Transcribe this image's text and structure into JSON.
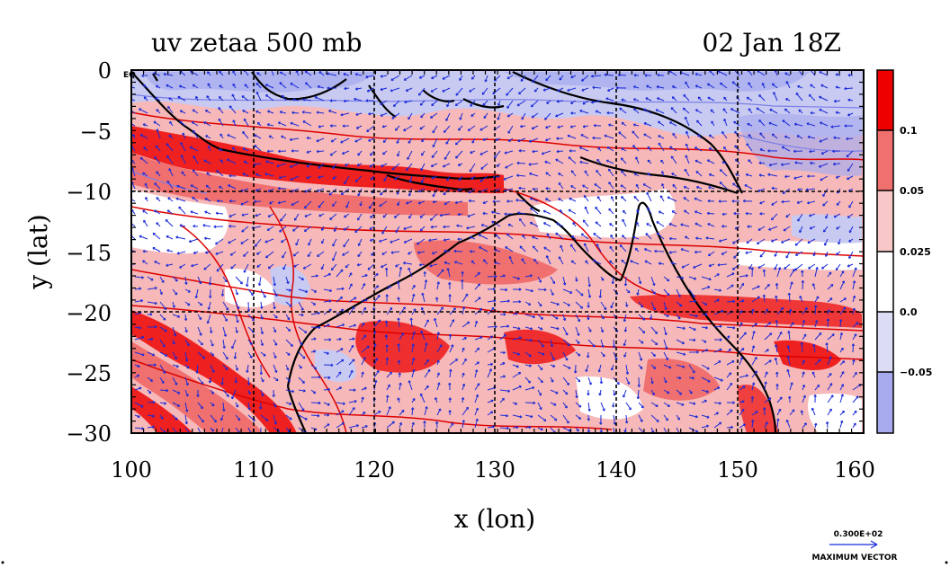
{
  "header": {
    "left_title": "uv zetaa 500 mb",
    "right_title": "02 Jan 18Z"
  },
  "axes": {
    "xlabel": "x (lon)",
    "ylabel": "y (lat)",
    "x_ticks": [
      "100",
      "110",
      "120",
      "130",
      "140",
      "150",
      "160"
    ],
    "y_ticks": [
      "0",
      "−5",
      "−10",
      "−15",
      "−20",
      "−25",
      "−30"
    ],
    "x_range": [
      100,
      160
    ],
    "y_range": [
      -30,
      0
    ],
    "eq_label": "EQ"
  },
  "colorbar": {
    "labels": [
      "0.1",
      "0.05",
      "0.025",
      "0.0",
      "−0.05"
    ],
    "colors": [
      "#ee0000",
      "#f07070",
      "#f8c8c8",
      "#ffffff",
      "#dcdcf4",
      "#a8aaee"
    ]
  },
  "vector_legend": {
    "value": "0.300E+02",
    "caption": "MAXIMUM VECTOR"
  },
  "colors": {
    "contour": "#dd0000",
    "vector": "#1a2ad8",
    "coast": "#000000",
    "grid": "#000000"
  }
}
